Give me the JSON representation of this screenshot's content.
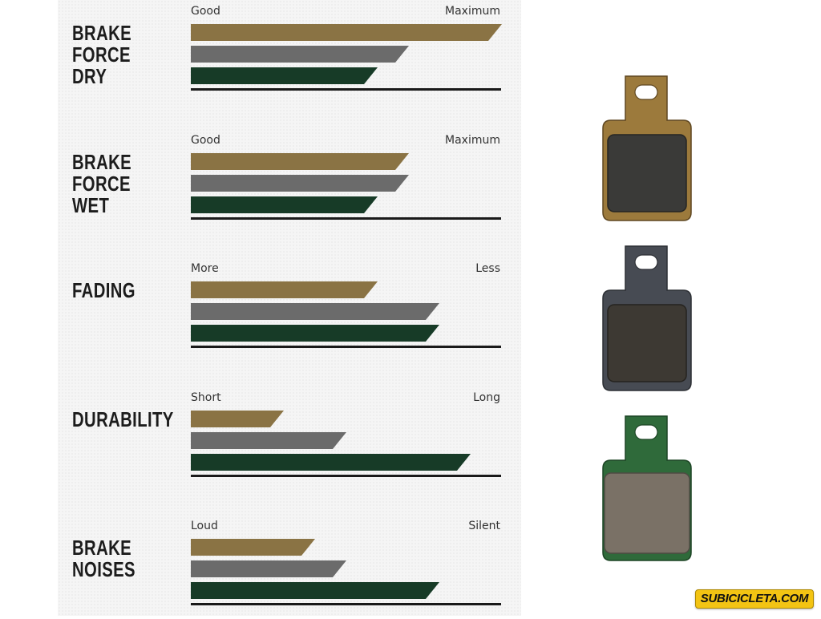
{
  "colors": {
    "bronze": "#8a7344",
    "gray": "#6b6b6b",
    "green": "#173b27",
    "baseline": "#1a1a1a"
  },
  "pad_types": [
    {
      "color_name": "bronze",
      "color": "#8a7344"
    },
    {
      "color_name": "gray",
      "color": "#6b6b6b"
    },
    {
      "color_name": "green",
      "color": "#173b27"
    }
  ],
  "chart_data": {
    "type": "bar",
    "orientation": "horizontal",
    "scale": [
      0,
      10
    ],
    "metrics": [
      {
        "title_lines": [
          "BRAKE FORCE",
          "DRY"
        ],
        "low_label": "Good",
        "high_label": "Maximum",
        "values": [
          10,
          7,
          6
        ]
      },
      {
        "title_lines": [
          "BRAKE FORCE",
          "WET"
        ],
        "low_label": "Good",
        "high_label": "Maximum",
        "values": [
          7,
          7,
          6
        ]
      },
      {
        "title_lines": [
          "FADING"
        ],
        "low_label": "More",
        "high_label": "Less",
        "values": [
          6,
          8,
          8
        ]
      },
      {
        "title_lines": [
          "DURABILITY"
        ],
        "low_label": "Short",
        "high_label": "Long",
        "values": [
          3,
          5,
          9
        ]
      },
      {
        "title_lines": [
          "BRAKE",
          "NOISES"
        ],
        "low_label": "Loud",
        "high_label": "Silent",
        "values": [
          4,
          5,
          8
        ]
      }
    ]
  },
  "watermark": "SUBICICLETA.COM"
}
